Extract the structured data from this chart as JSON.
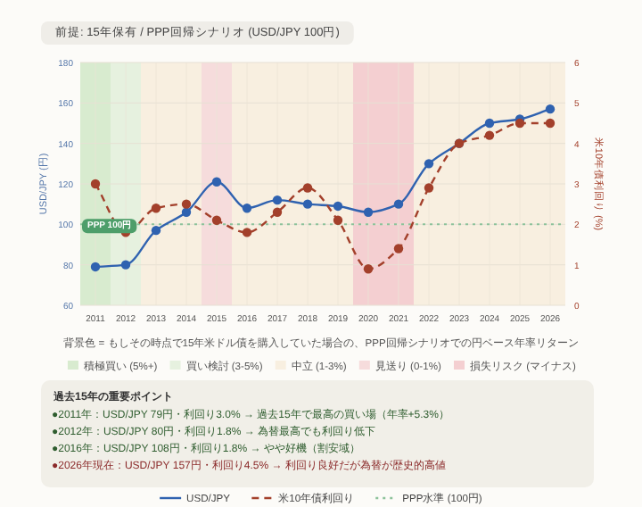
{
  "chart_data": {
    "type": "line",
    "title": "前提: 15年保有 / PPP回帰シナリオ (USD/JPY 100円)",
    "ylabel": "USD/JPY (円)",
    "y2label": "米10年債利回り (%)",
    "categories": [
      "2011",
      "2012",
      "2013",
      "2014",
      "2015",
      "2016",
      "2017",
      "2018",
      "2019",
      "2020",
      "2021",
      "2022",
      "2023",
      "2024",
      "2025",
      "2026"
    ],
    "series": [
      {
        "name": "USD/JPY",
        "color": "#2f62b0",
        "values": [
          79,
          80,
          97,
          106,
          121,
          108,
          112,
          110,
          109,
          106,
          110,
          130,
          140,
          150,
          152,
          157
        ],
        "line_style": "solid",
        "marker": "circle"
      },
      {
        "name": "米10年債利回り",
        "color": "#a3402b",
        "axis": "y2",
        "values": [
          3.0,
          1.8,
          2.4,
          2.5,
          2.1,
          1.8,
          2.3,
          2.9,
          2.1,
          0.9,
          1.4,
          2.9,
          4.0,
          4.2,
          4.5,
          4.5
        ],
        "line_style": "dashed",
        "marker": "circle"
      }
    ],
    "ylim": [
      60,
      180
    ],
    "yticks": [
      60,
      80,
      100,
      120,
      140,
      160,
      180
    ],
    "y2lim": [
      0,
      6
    ],
    "y2ticks": [
      0,
      1,
      2,
      3,
      4,
      5,
      6
    ],
    "ref_lines": [
      {
        "axis": "y",
        "value": 100,
        "label": "PPP水準 (100円)",
        "color": "#8cc29a",
        "line_style": "dotted"
      }
    ],
    "bands": [
      {
        "axis": "x",
        "from": "2011",
        "to": "2011",
        "label": "積極買い (5%+)",
        "color": "#d8ebcf"
      },
      {
        "axis": "x",
        "from": "2012",
        "to": "2012",
        "label": "買い検討 (3-5%)",
        "color": "#e6f1df"
      },
      {
        "axis": "x",
        "from": "2013",
        "to": "2014",
        "label": "中立 (1-3%)",
        "color": "#f8efe0"
      },
      {
        "axis": "x",
        "from": "2015",
        "to": "2015",
        "label": "見送り (0-1%)",
        "color": "#f6dcdc"
      },
      {
        "axis": "x",
        "from": "2016",
        "to": "2019",
        "color": "#f8efe0"
      },
      {
        "axis": "x",
        "from": "2020",
        "to": "2021",
        "label": "損失リスク (マイナス)",
        "color": "#f4cfd1"
      },
      {
        "axis": "x",
        "from": "2022",
        "to": "2026",
        "color": "#f8efe0"
      }
    ],
    "annotations": [
      {
        "text": "PPP 100円",
        "x": "2011",
        "y": 100
      },
      "背景色 = もしその時点で15年米ドル債を購入していた場合の、PPP回帰シナリオでの円ベース年率リターン",
      "過去15年の重要ポイント",
      "●2011年：USD/JPY 79円・利回り3.0% → 過去15年で最高の買い場（年率+5.3%）",
      "●2012年：USD/JPY 80円・利回り1.8% → 為替最高でも利回り低下",
      "●2016年：USD/JPY 108円・利回り1.8% → やや好機（割安域）",
      "●2026年現在：USD/JPY 157円・利回り4.5% → 利回り良好だが為替が歴史的高値"
    ],
    "grid": true,
    "legend": "bottom"
  }
}
